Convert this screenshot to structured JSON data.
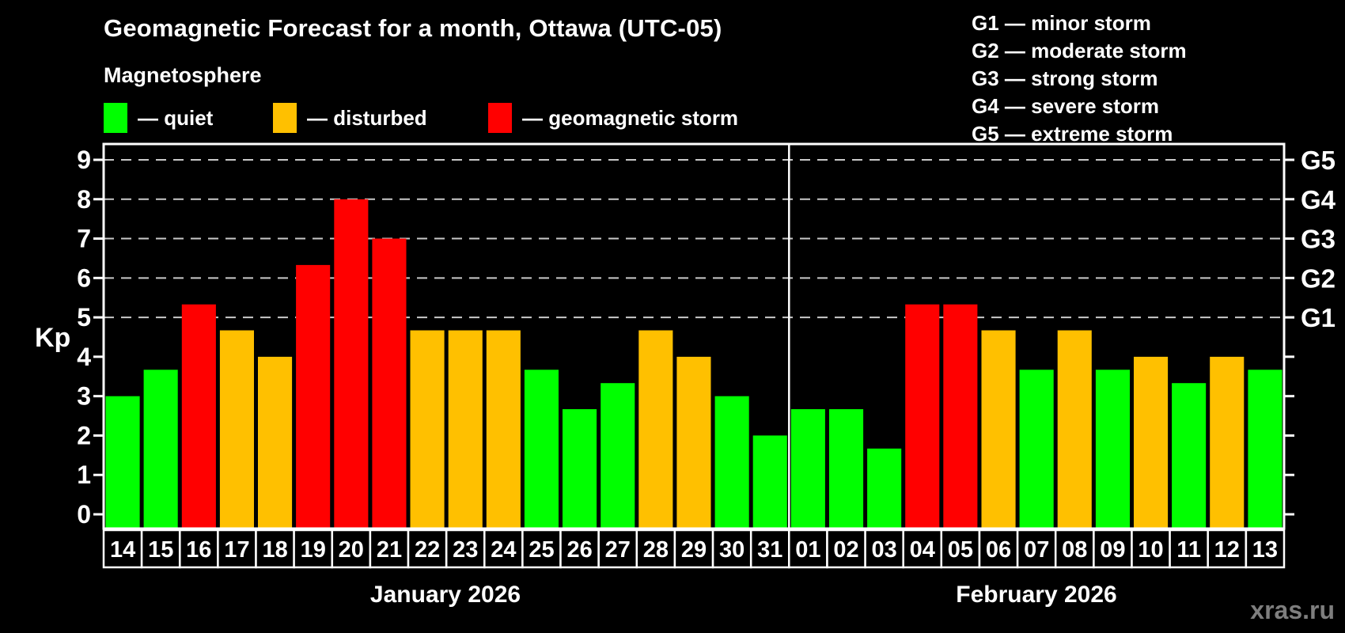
{
  "header": {
    "title": "Geomagnetic Forecast for a month, Ottawa (UTC-05)",
    "subtitle": "Magnetosphere"
  },
  "legend": {
    "items": [
      {
        "key": "quiet",
        "label": "— quiet",
        "color": "#00ff00"
      },
      {
        "key": "disturbed",
        "label": "— disturbed",
        "color": "#ffc000"
      },
      {
        "key": "storm",
        "label": "— geomagnetic storm",
        "color": "#ff0000"
      }
    ]
  },
  "g_legend": {
    "items": [
      "G1 — minor storm",
      "G2 — moderate storm",
      "G3 — strong storm",
      "G4 — severe storm",
      "G5 — extreme storm"
    ]
  },
  "watermark": "xras.ru",
  "chart_data": {
    "type": "bar",
    "title": "Geomagnetic Forecast for a month, Ottawa (UTC-05)",
    "ylabel": "Kp",
    "ylim": [
      0,
      9.4
    ],
    "yticks": [
      0,
      1,
      2,
      3,
      4,
      5,
      6,
      7,
      8,
      9
    ],
    "grid": "dashed horizontal lines at Kp 5 through 9",
    "legend_position": "top",
    "right_axis": [
      {
        "kp": 5,
        "label": "G1"
      },
      {
        "kp": 6,
        "label": "G2"
      },
      {
        "kp": 7,
        "label": "G3"
      },
      {
        "kp": 8,
        "label": "G4"
      },
      {
        "kp": 9,
        "label": "G5"
      }
    ],
    "colors": {
      "quiet": "#00ff00",
      "disturbed": "#ffc000",
      "storm": "#ff0000"
    },
    "months": [
      {
        "label": "January 2026",
        "days": [
          {
            "date": "14",
            "kp": 3.0,
            "level": "quiet"
          },
          {
            "date": "15",
            "kp": 3.67,
            "level": "quiet"
          },
          {
            "date": "16",
            "kp": 5.33,
            "level": "storm"
          },
          {
            "date": "17",
            "kp": 4.67,
            "level": "disturbed"
          },
          {
            "date": "18",
            "kp": 4.0,
            "level": "disturbed"
          },
          {
            "date": "19",
            "kp": 6.33,
            "level": "storm"
          },
          {
            "date": "20",
            "kp": 8.0,
            "level": "storm"
          },
          {
            "date": "21",
            "kp": 7.0,
            "level": "storm"
          },
          {
            "date": "22",
            "kp": 4.67,
            "level": "disturbed"
          },
          {
            "date": "23",
            "kp": 4.67,
            "level": "disturbed"
          },
          {
            "date": "24",
            "kp": 4.67,
            "level": "disturbed"
          },
          {
            "date": "25",
            "kp": 3.67,
            "level": "quiet"
          },
          {
            "date": "26",
            "kp": 2.67,
            "level": "quiet"
          },
          {
            "date": "27",
            "kp": 3.33,
            "level": "quiet"
          },
          {
            "date": "28",
            "kp": 4.67,
            "level": "disturbed"
          },
          {
            "date": "29",
            "kp": 4.0,
            "level": "disturbed"
          },
          {
            "date": "30",
            "kp": 3.0,
            "level": "quiet"
          },
          {
            "date": "31",
            "kp": 2.0,
            "level": "quiet"
          }
        ]
      },
      {
        "label": "February 2026",
        "days": [
          {
            "date": "01",
            "kp": 2.67,
            "level": "quiet"
          },
          {
            "date": "02",
            "kp": 2.67,
            "level": "quiet"
          },
          {
            "date": "03",
            "kp": 1.67,
            "level": "quiet"
          },
          {
            "date": "04",
            "kp": 5.33,
            "level": "storm"
          },
          {
            "date": "05",
            "kp": 5.33,
            "level": "storm"
          },
          {
            "date": "06",
            "kp": 4.67,
            "level": "disturbed"
          },
          {
            "date": "07",
            "kp": 3.67,
            "level": "quiet"
          },
          {
            "date": "08",
            "kp": 4.67,
            "level": "disturbed"
          },
          {
            "date": "09",
            "kp": 3.67,
            "level": "quiet"
          },
          {
            "date": "10",
            "kp": 4.0,
            "level": "disturbed"
          },
          {
            "date": "11",
            "kp": 3.33,
            "level": "quiet"
          },
          {
            "date": "12",
            "kp": 4.0,
            "level": "disturbed"
          },
          {
            "date": "13",
            "kp": 3.67,
            "level": "quiet"
          }
        ]
      }
    ]
  }
}
